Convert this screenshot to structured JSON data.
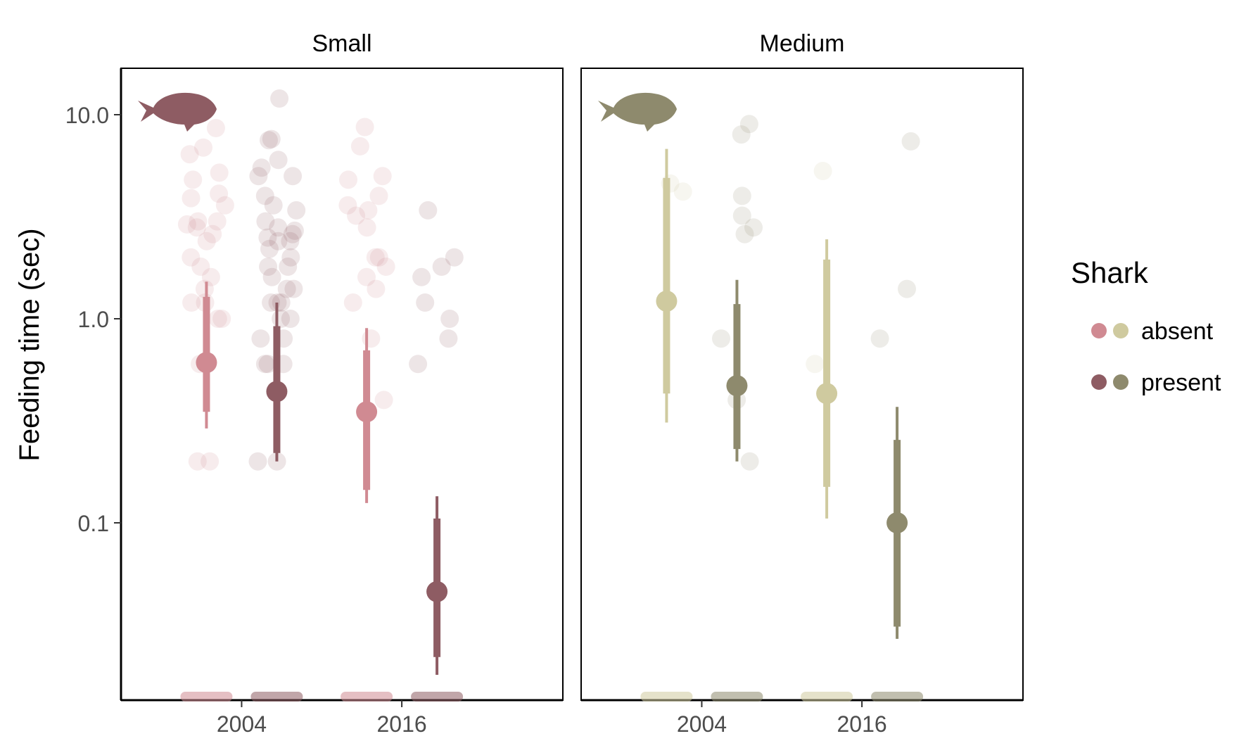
{
  "chart_data": {
    "type": "scatter",
    "ylabel": "Feeding time (sec)",
    "y_scale": "log10",
    "y_ticks": [
      {
        "value": 0.1,
        "label": "0.1"
      },
      {
        "value": 1.0,
        "label": "1.0"
      },
      {
        "value": 10.0,
        "label": "10.0"
      }
    ],
    "categories": [
      "2004",
      "2016"
    ],
    "grid": false,
    "legend": {
      "title": "Shark",
      "position": "right",
      "entries": [
        {
          "label": "absent",
          "small_color": "#d08a92",
          "medium_color": "#cfca9f"
        },
        {
          "label": "present",
          "small_color": "#8e5c63",
          "medium_color": "#8e8a6d"
        }
      ]
    },
    "panels": [
      {
        "title": "Small",
        "icon": "fish-silhouette-icon",
        "icon_color": "#8e5c63",
        "groups": [
          {
            "year": "2004",
            "shark": "absent",
            "color": "#d08a92",
            "estimate": 0.61,
            "ci_inner": [
              0.35,
              1.28
            ],
            "ci_outer": [
              0.29,
              1.52
            ],
            "points": [
              8.6,
              6.4,
              6.9,
              5.2,
              4.8,
              4.1,
              3.9,
              3.6,
              3.0,
              3.0,
              2.9,
              2.8,
              2.6,
              2.4,
              2.0,
              1.8,
              1.6,
              1.4,
              1.2,
              1.2,
              1.0,
              1.0,
              0.6,
              0.6,
              0.2,
              0.2
            ]
          },
          {
            "year": "2004",
            "shark": "present",
            "color": "#8e5c63",
            "estimate": 0.44,
            "ci_inner": [
              0.22,
              0.92
            ],
            "ci_outer": [
              0.2,
              1.2
            ],
            "points": [
              12.0,
              7.6,
              7.5,
              6.0,
              5.5,
              5.0,
              5.0,
              4.0,
              3.6,
              3.4,
              3.0,
              2.8,
              2.7,
              2.6,
              2.5,
              2.4,
              2.4,
              2.2,
              2.0,
              1.8,
              1.8,
              1.6,
              1.4,
              1.4,
              1.2,
              1.2,
              1.2,
              1.0,
              1.0,
              0.8,
              0.8,
              0.6,
              0.6,
              0.6,
              0.2,
              0.2
            ]
          },
          {
            "year": "2016",
            "shark": "absent",
            "color": "#d08a92",
            "estimate": 0.35,
            "ci_inner": [
              0.145,
              0.7
            ],
            "ci_outer": [
              0.125,
              0.9
            ],
            "points": [
              8.7,
              7.0,
              5.0,
              4.8,
              4.0,
              3.6,
              3.4,
              3.2,
              2.8,
              2.0,
              2.0,
              1.8,
              1.6,
              1.4,
              1.2,
              0.8,
              0.4
            ]
          },
          {
            "year": "2016",
            "shark": "present",
            "color": "#8e5c63",
            "estimate": 0.046,
            "ci_inner": [
              0.022,
              0.105
            ],
            "ci_outer": [
              0.018,
              0.135
            ],
            "points": [
              3.4,
              2.0,
              1.8,
              1.6,
              1.2,
              1.0,
              0.8,
              0.6
            ]
          }
        ]
      },
      {
        "title": "Medium",
        "icon": "fish-silhouette-icon",
        "icon_color": "#8e8a6d",
        "groups": [
          {
            "year": "2004",
            "shark": "absent",
            "color": "#cfca9f",
            "estimate": 1.22,
            "ci_inner": [
              0.43,
              4.9
            ],
            "ci_outer": [
              0.31,
              6.8
            ],
            "points": [
              4.6,
              4.2
            ]
          },
          {
            "year": "2004",
            "shark": "present",
            "color": "#8e8a6d",
            "estimate": 0.47,
            "ci_inner": [
              0.23,
              1.18
            ],
            "ci_outer": [
              0.2,
              1.55
            ],
            "points": [
              8.0,
              9.0,
              4.0,
              3.2,
              2.8,
              2.6,
              0.8,
              0.4,
              0.2
            ]
          },
          {
            "year": "2016",
            "shark": "absent",
            "color": "#cfca9f",
            "estimate": 0.43,
            "ci_inner": [
              0.15,
              1.95
            ],
            "ci_outer": [
              0.105,
              2.45
            ],
            "points": [
              5.3,
              0.6
            ]
          },
          {
            "year": "2016",
            "shark": "present",
            "color": "#8e8a6d",
            "estimate": 0.1,
            "ci_inner": [
              0.031,
              0.255
            ],
            "ci_outer": [
              0.027,
              0.37
            ],
            "points": [
              7.4,
              1.4,
              0.8
            ]
          }
        ]
      }
    ]
  }
}
